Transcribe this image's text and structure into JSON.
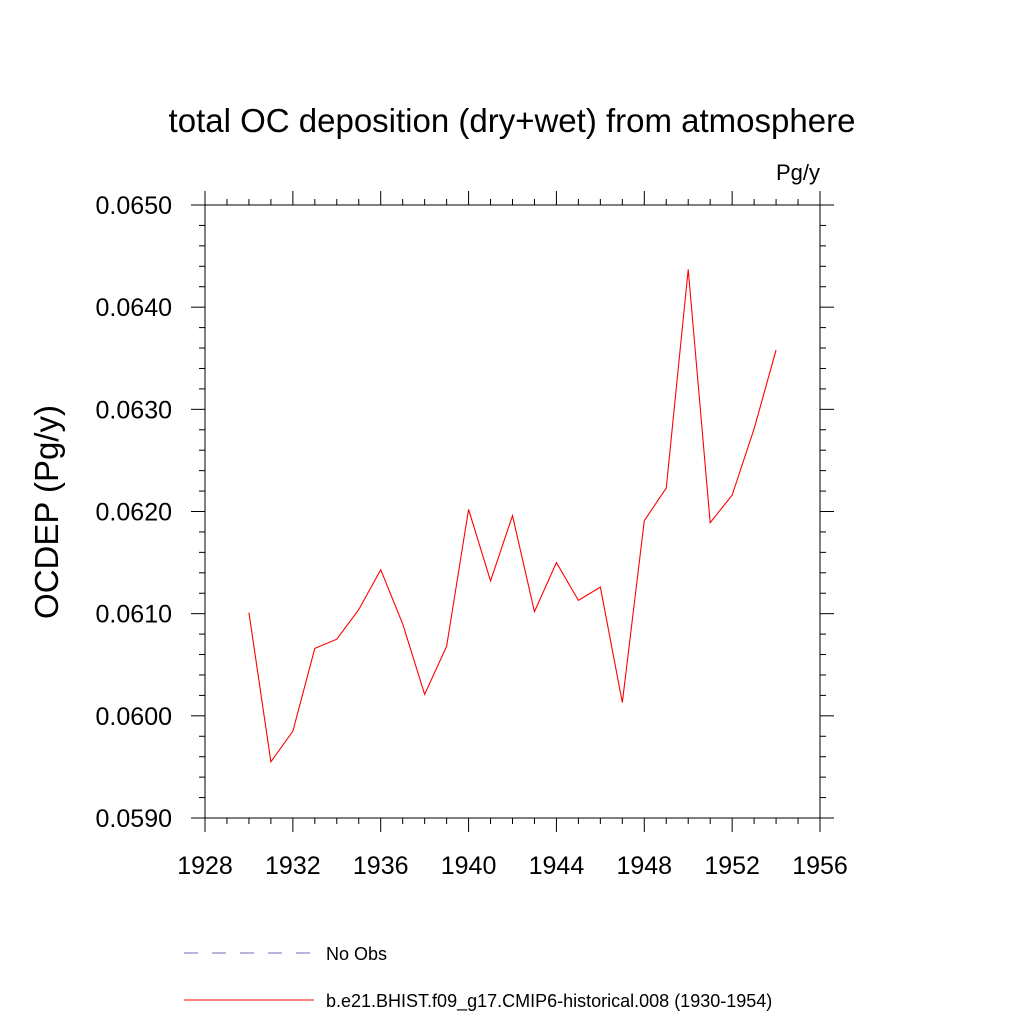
{
  "chart_data": {
    "type": "line",
    "title": "total OC deposition (dry+wet) from atmosphere",
    "units_label": "Pg/y",
    "ylabel": "OCDEP  (Pg/y)",
    "xlabel": "",
    "xlim": [
      1928,
      1956
    ],
    "ylim": [
      0.059,
      0.065
    ],
    "x_ticks": [
      1928,
      1932,
      1936,
      1940,
      1944,
      1948,
      1952,
      1956
    ],
    "x_tick_labels": [
      "1928",
      "1932",
      "1936",
      "1940",
      "1944",
      "1948",
      "1952",
      "1956"
    ],
    "y_ticks": [
      0.059,
      0.06,
      0.061,
      0.062,
      0.063,
      0.064,
      0.065
    ],
    "y_tick_labels": [
      "0.0590",
      "0.0600",
      "0.0610",
      "0.0620",
      "0.0630",
      "0.0640",
      "0.0650"
    ],
    "grid": false,
    "legend_position": "bottom",
    "series": [
      {
        "name": "b.e21.BHIST.f09_g17.CMIP6-historical.008 (1930-1954)",
        "color": "#ff0000",
        "style": "solid",
        "x": [
          1930,
          1931,
          1932,
          1933,
          1934,
          1935,
          1936,
          1937,
          1938,
          1939,
          1940,
          1941,
          1942,
          1943,
          1944,
          1945,
          1946,
          1947,
          1948,
          1949,
          1950,
          1951,
          1952,
          1953,
          1954
        ],
        "values": [
          0.06101,
          0.05955,
          0.05985,
          0.06066,
          0.06075,
          0.06104,
          0.06143,
          0.0609,
          0.06021,
          0.06068,
          0.06202,
          0.06132,
          0.06196,
          0.06102,
          0.0615,
          0.06113,
          0.06126,
          0.06013,
          0.06191,
          0.06223,
          0.06437,
          0.06189,
          0.06216,
          0.06281,
          0.06358
        ]
      },
      {
        "name": "No Obs",
        "color": "#6a6ab8",
        "style": "dashed",
        "x": [],
        "values": []
      }
    ]
  }
}
